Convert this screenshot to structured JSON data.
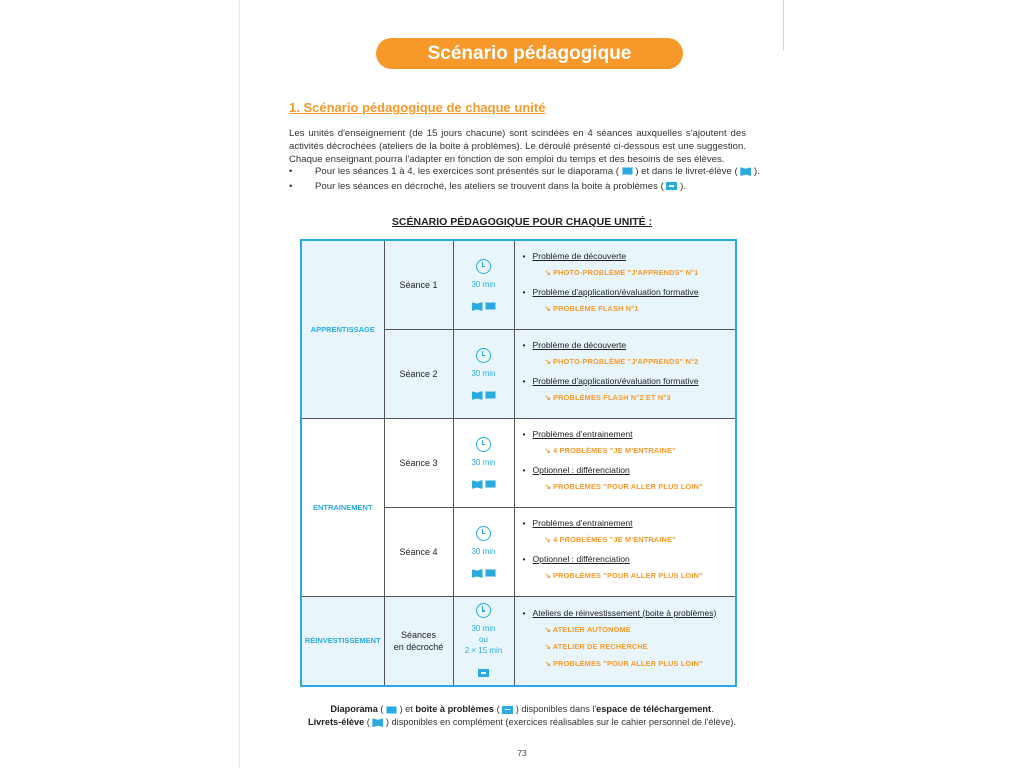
{
  "header": {
    "title": "Scénario pédagogique"
  },
  "section": {
    "heading": "1. Scénario pédagogique de chaque unité",
    "intro": "Les unités d'enseignement (de 15 jours chacune) sont scindées en 4 séances auxquelles s'ajoutent des activités décrochées (ateliers de la boite à problèmes). Le déroulé présenté ci-dessous est une suggestion. Chaque enseignant pourra l'adapter en fonction de son emploi du temps et des besoins de ses élèves.",
    "bullet1_a": "Pour les séances 1 à 4, les exercices sont présentés sur le diaporama (",
    "bullet1_b": ") et dans le livret-élève (",
    "bullet1_c": ").",
    "bullet2_a": "Pour les séances en décroché, les ateliers se trouvent dans la boite à problèmes (",
    "bullet2_b": ")."
  },
  "table": {
    "title": "SCÉNARIO PÉDAGOGIQUE POUR CHAQUE UNITÉ :",
    "categories": [
      "APPRENTISSAGE",
      "ENTRAINEMENT",
      "RÉINVESTISSEMENT"
    ],
    "rows": [
      {
        "seance": "Séance 1",
        "duration": "30 min",
        "items": [
          {
            "title": "Problème de découverte",
            "subs": [
              "PHOTO-PROBLÈME \"J'APPRENDS\" N°1"
            ]
          },
          {
            "title": "Problème d'application/évaluation formative",
            "subs": [
              "PROBLÈME FLASH N°1"
            ]
          }
        ]
      },
      {
        "seance": "Séance 2",
        "duration": "30 min",
        "items": [
          {
            "title": "Problème de découverte",
            "subs": [
              "PHOTO-PROBLÈME \"J'APPRENDS\" N°2"
            ]
          },
          {
            "title": "Problème d'application/évaluation formative",
            "subs": [
              "PROBLÈMES FLASH N°2 ET N°3"
            ]
          }
        ]
      },
      {
        "seance": "Séance 3",
        "duration": "30 min",
        "items": [
          {
            "title": "Problèmes d'entrainement",
            "subs": [
              "4 PROBLÈMES \"JE M'ENTRAINE\""
            ]
          },
          {
            "title": "Optionnel : différenciation",
            "subs": [
              "PROBLÈMES \"POUR ALLER PLUS LOIN\""
            ]
          }
        ]
      },
      {
        "seance": "Séance 4",
        "duration": "30 min",
        "items": [
          {
            "title": "Problèmes d'entrainement",
            "subs": [
              "4 PROBLÈMES \"JE M'ENTRAINE\""
            ]
          },
          {
            "title": "Optionnel : différenciation",
            "subs": [
              "PROBLÈMES \"POUR ALLER PLUS LOIN\""
            ]
          }
        ]
      },
      {
        "seance_l1": "Séances",
        "seance_l2": "en décroché",
        "duration": "30 min",
        "duration_or": "ou",
        "duration_alt": "2 × 15 min",
        "items": [
          {
            "title": "Ateliers de réinvestissement (boite à problèmes)",
            "subs": [
              "ATELIER AUTONOME",
              "ATELIER DE RECHERCHE",
              "PROBLÈMES \"POUR ALLER PLUS LOIN\""
            ]
          }
        ]
      }
    ],
    "arrow": "↘"
  },
  "footer": {
    "l1_a": "Diaporama",
    "l1_b": " ( ",
    "l1_c": " ) et ",
    "l1_d": "boite à problèmes",
    "l1_e": " ( ",
    "l1_f": " ) disponibles dans l'",
    "l1_g": "espace de téléchargement",
    "l1_h": ".",
    "l2_a": "Livrets-élève",
    "l2_b": " ( ",
    "l2_c": " ) disponibles en complément (exercices réalisables sur le cahier personnel de l'élève)."
  },
  "page_number": "73",
  "colors": {
    "accent_orange": "#f7992a",
    "accent_blue": "#29abe2",
    "row_tint": "#e8f6fb"
  }
}
